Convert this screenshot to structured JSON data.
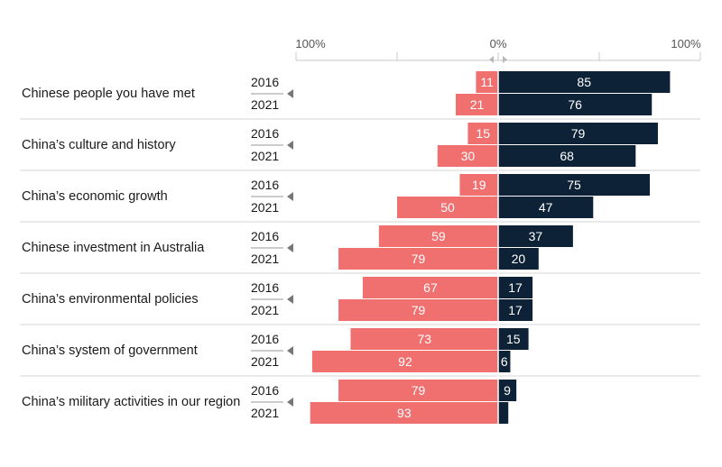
{
  "chart_data": {
    "type": "bar",
    "orientation": "horizontal-diverging",
    "axis": {
      "left_label": "100%",
      "center_label": "0%",
      "right_label": "100%",
      "range": [
        -100,
        100
      ]
    },
    "series": [
      {
        "name": "negative",
        "color": "#f07070",
        "direction": "left"
      },
      {
        "name": "positive",
        "color": "#0d2236",
        "direction": "right"
      }
    ],
    "categories": [
      {
        "label": "Chinese people you have met",
        "years": [
          {
            "year": "2016",
            "negative": 11,
            "positive": 85
          },
          {
            "year": "2021",
            "negative": 21,
            "positive": 76
          }
        ]
      },
      {
        "label": "China’s culture and history",
        "years": [
          {
            "year": "2016",
            "negative": 15,
            "positive": 79
          },
          {
            "year": "2021",
            "negative": 30,
            "positive": 68
          }
        ]
      },
      {
        "label": "China’s economic growth",
        "years": [
          {
            "year": "2016",
            "negative": 19,
            "positive": 75
          },
          {
            "year": "2021",
            "negative": 50,
            "positive": 47
          }
        ]
      },
      {
        "label": "Chinese investment in Australia",
        "years": [
          {
            "year": "2016",
            "negative": 59,
            "positive": 37
          },
          {
            "year": "2021",
            "negative": 79,
            "positive": 20
          }
        ]
      },
      {
        "label": "China’s environmental policies",
        "years": [
          {
            "year": "2016",
            "negative": 67,
            "positive": 17
          },
          {
            "year": "2021",
            "negative": 79,
            "positive": 17
          }
        ]
      },
      {
        "label": "China’s system of government",
        "years": [
          {
            "year": "2016",
            "negative": 73,
            "positive": 15
          },
          {
            "year": "2021",
            "negative": 92,
            "positive": 6
          }
        ]
      },
      {
        "label": "China’s military activities in our region",
        "years": [
          {
            "year": "2016",
            "negative": 79,
            "positive": 9
          },
          {
            "year": "2021",
            "negative": 93,
            "positive": 5
          }
        ]
      }
    ]
  }
}
